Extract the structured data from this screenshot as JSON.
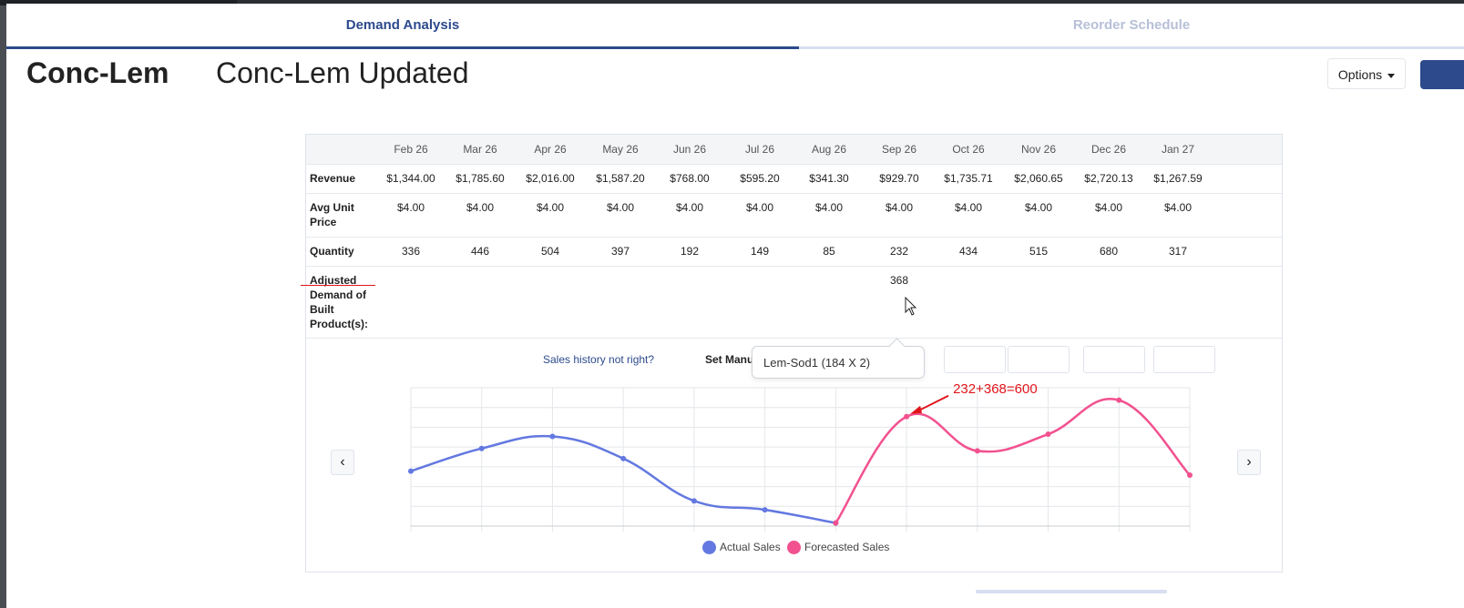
{
  "tabs": {
    "active": "Demand Analysis",
    "inactive": "Reorder Schedule"
  },
  "header": {
    "title": "Conc-Lem",
    "subtitle": "Conc-Lem Updated",
    "options_label": "Options"
  },
  "table": {
    "months": [
      "Feb 26",
      "Mar 26",
      "Apr 26",
      "May 26",
      "Jun 26",
      "Jul 26",
      "Aug 26",
      "Sep 26",
      "Oct 26",
      "Nov 26",
      "Dec 26",
      "Jan 27"
    ],
    "rows": {
      "revenue": {
        "label": "Revenue",
        "values": [
          "$1,344.00",
          "$1,785.60",
          "$2,016.00",
          "$1,587.20",
          "$768.00",
          "$595.20",
          "$341.30",
          "$929.70",
          "$1,735.71",
          "$2,060.65",
          "$2,720.13",
          "$1,267.59"
        ]
      },
      "avg_price": {
        "label_line1": "Avg Unit",
        "label_line2": "Price",
        "values": [
          "$4.00",
          "$4.00",
          "$4.00",
          "$4.00",
          "$4.00",
          "$4.00",
          "$4.00",
          "$4.00",
          "$4.00",
          "$4.00",
          "$4.00",
          "$4.00"
        ]
      },
      "quantity": {
        "label": "Quantity",
        "values": [
          "336",
          "446",
          "504",
          "397",
          "192",
          "149",
          "85",
          "232",
          "434",
          "515",
          "680",
          "317"
        ]
      },
      "adjusted": {
        "label_lines": [
          "Adjusted",
          "Demand of",
          "Built",
          "Product(s):"
        ],
        "values": [
          "",
          "",
          "",
          "",
          "",
          "",
          "",
          "368",
          "",
          "",
          "",
          ""
        ]
      }
    }
  },
  "controls": {
    "sales_history_link": "Sales history not right?",
    "set_manual_label": "Set Manu",
    "tooltip": "Lem-Sod1 (184 X 2)",
    "prev": "‹",
    "next": "›"
  },
  "annotation": {
    "text": "232+368=600",
    "color": "#e0151b"
  },
  "chart_data": {
    "type": "line",
    "categories": [
      "Feb 26",
      "Mar 26",
      "Apr 26",
      "May 26",
      "Jun 26",
      "Jul 26",
      "Aug 26",
      "Sep 26",
      "Oct 26",
      "Nov 26",
      "Dec 26",
      "Jan 27"
    ],
    "series": [
      {
        "name": "Actual Sales",
        "color": "#6378e0",
        "values": [
          336,
          446,
          504,
          397,
          192,
          149,
          85,
          null,
          null,
          null,
          null,
          null
        ]
      },
      {
        "name": "Forecasted Sales",
        "color": "#f2518f",
        "values": [
          null,
          null,
          null,
          null,
          null,
          null,
          85,
          600,
          434,
          515,
          680,
          317
        ]
      }
    ],
    "ylim": [
      70,
      740
    ],
    "grid": true,
    "legend": "bottom-center"
  }
}
